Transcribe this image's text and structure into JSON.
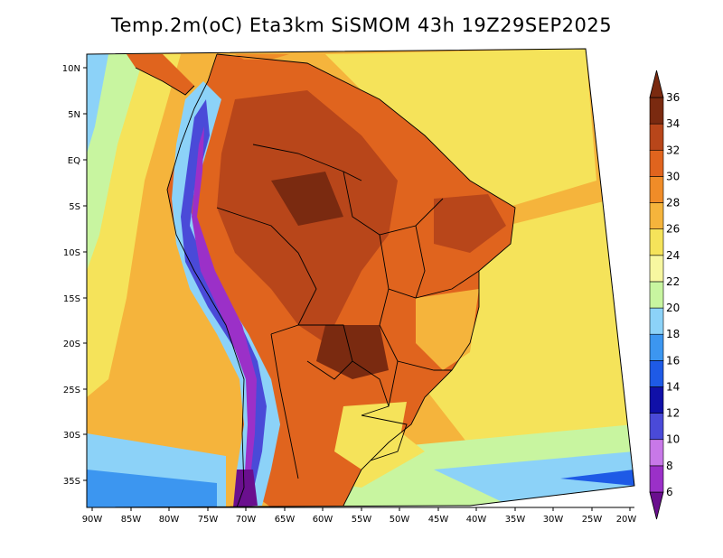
{
  "title": "Temp.2m(oC) Eta3km SiSMOM 43h 19Z29SEP2025",
  "lat_labels": [
    "10N",
    "5N",
    "EQ",
    "5S",
    "10S",
    "15S",
    "20S",
    "25S",
    "30S",
    "35S"
  ],
  "lon_labels": [
    "90W",
    "85W",
    "80W",
    "75W",
    "70W",
    "65W",
    "60W",
    "55W",
    "50W",
    "45W",
    "40W",
    "35W",
    "30W",
    "25W",
    "20W"
  ],
  "colorbar": {
    "levels": [
      "6",
      "8",
      "10",
      "12",
      "14",
      "16",
      "18",
      "20",
      "22",
      "24",
      "26",
      "28",
      "30",
      "32",
      "34",
      "36"
    ],
    "colors": [
      "#6a0f8e",
      "#9b30c8",
      "#c878e8",
      "#4a4ad8",
      "#1010a8",
      "#1e5ae6",
      "#3c96f0",
      "#8cd2f8",
      "#c8f5a0",
      "#f7f7a0",
      "#f5e35a",
      "#f5b43c",
      "#f08c28",
      "#e0641e",
      "#b8461a",
      "#7a2a10"
    ]
  },
  "colors": {
    "ocean_warm": "#f5b43c",
    "ocean_cool": "#f5e35a",
    "land_hot": "#b8461a",
    "land_warm": "#e0641e"
  }
}
